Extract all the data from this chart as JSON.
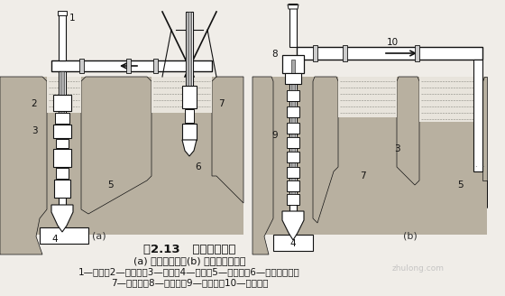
{
  "title": "图2.13   循环排渣方法",
  "subtitle": "(a) 正循环排渣；(b) 泵举反循环排渣",
  "legend_line1": "1—钻杆；2—送水管；3—主机；4—钻头；5—沉淀池；6—潜水泥浆泵；",
  "legend_line2": "7—泥浆池；8—砂石泵；9—抽渣管；10—排渣胶管",
  "label_a": "(a)",
  "label_b": "(b)",
  "bg_color": "#f0ede8",
  "text_color": "#111111",
  "watermark": "zhulong.com",
  "fig_width": 5.6,
  "fig_height": 3.28,
  "dpi": 100
}
